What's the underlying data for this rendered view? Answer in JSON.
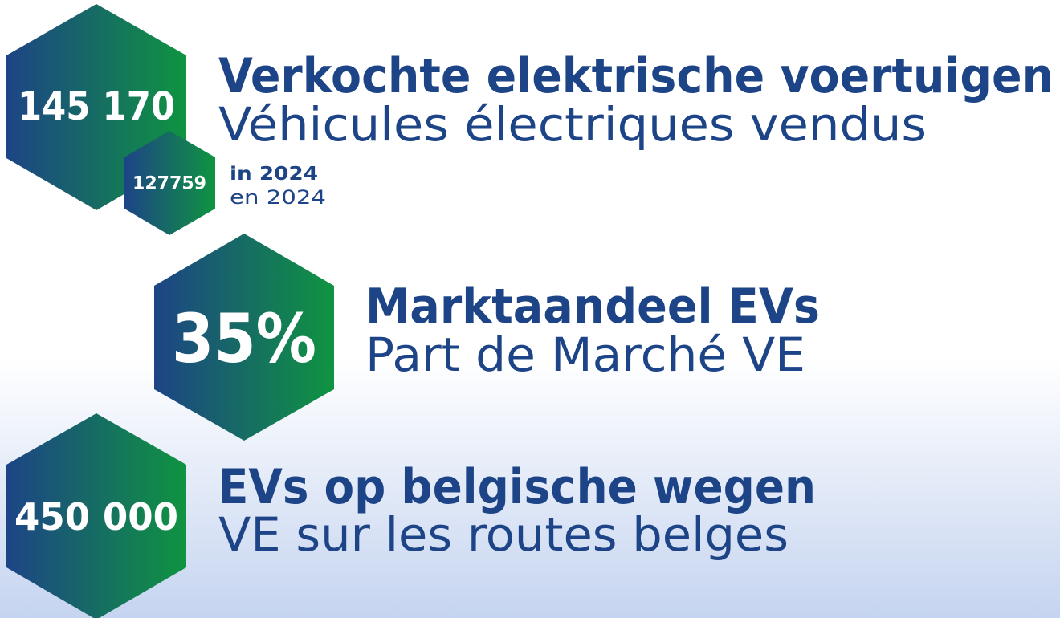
{
  "stats": [
    {
      "value": "145 170",
      "title_nl": "Verkochte elektrische voertuigen",
      "title_fr": "Véhicules électriques vendus"
    },
    {
      "value": "35%",
      "title_nl": "Marktaandeel EVs",
      "title_fr": "Part de Marché VE"
    },
    {
      "value": "450 000",
      "title_nl": "EVs op belgische wegen",
      "title_fr": "VE sur les routes belges"
    }
  ],
  "previous_year": {
    "value": "127759",
    "label_nl": "in 2024",
    "label_fr": "en 2024"
  }
}
